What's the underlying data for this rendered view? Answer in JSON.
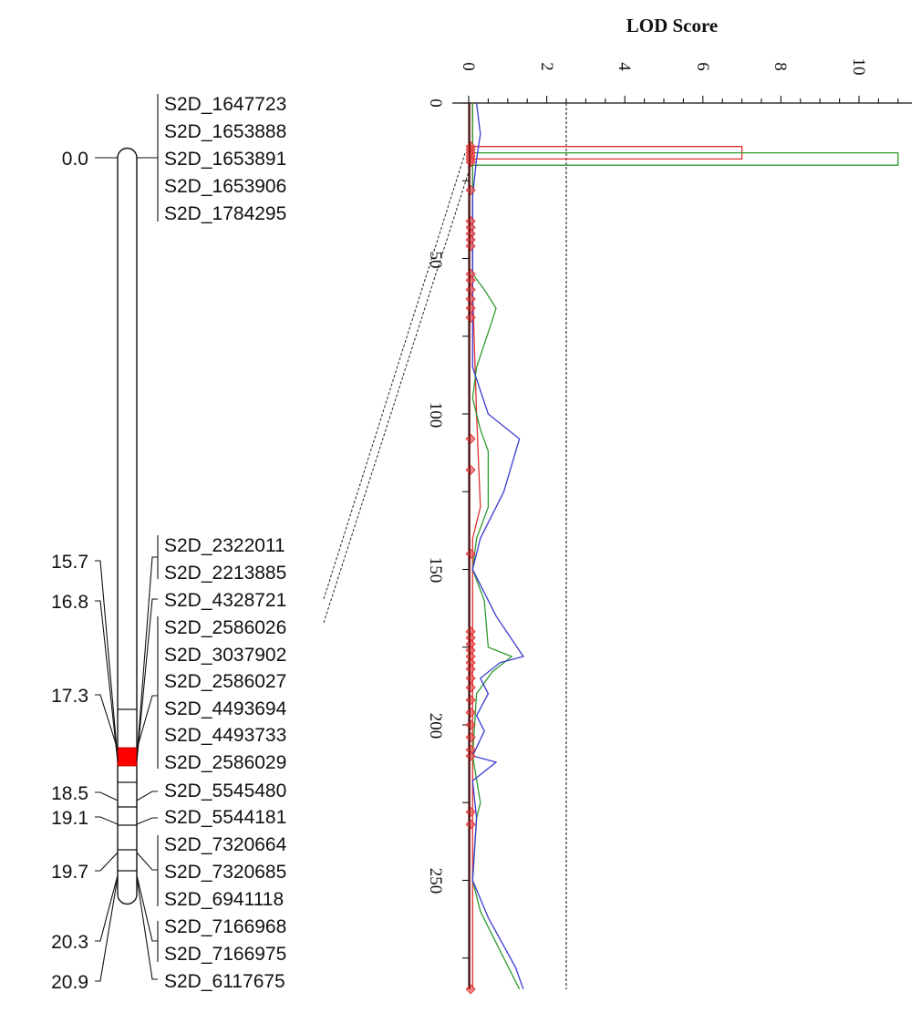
{
  "linkage_map": {
    "groups": [
      {
        "positions": [
          "0.0"
        ],
        "markers": [
          "S2D_1647723",
          "S2D_1653888",
          "S2D_1653891",
          "S2D_1653906",
          "S2D_1784295"
        ]
      },
      {
        "positions": [
          "15.7"
        ],
        "markers": [
          "S2D_2322011",
          "S2D_2213885"
        ]
      },
      {
        "positions": [
          "16.8"
        ],
        "markers": [
          "S2D_4328721"
        ]
      },
      {
        "positions": [
          "17.3"
        ],
        "markers": [
          "S2D_2586026",
          "S2D_3037902",
          "S2D_2586027",
          "S2D_4493694",
          "S2D_4493733",
          "S2D_2586029"
        ]
      },
      {
        "positions": [
          "18.5"
        ],
        "markers": [
          "S2D_5545480"
        ]
      },
      {
        "positions": [
          "19.1"
        ],
        "markers": [
          "S2D_5544181"
        ]
      },
      {
        "positions": [
          "19.7"
        ],
        "markers": [
          "S2D_7320664",
          "S2D_7320685",
          "S2D_6941118"
        ]
      },
      {
        "positions": [
          "20.3"
        ],
        "markers": [
          "S2D_7166968",
          "S2D_7166975"
        ]
      },
      {
        "positions": [
          "20.9"
        ],
        "markers": [
          "S2D_6117675"
        ]
      }
    ],
    "position_labels": [
      "0.0",
      "15.7",
      "16.8",
      "17.3",
      "18.5",
      "19.1",
      "19.7",
      "20.3",
      "20.9"
    ],
    "marker_labels": [
      "S2D_1647723",
      "S2D_1653888",
      "S2D_1653891",
      "S2D_1653906",
      "S2D_1784295",
      "S2D_2322011",
      "S2D_2213885",
      "S2D_4328721",
      "S2D_2586026",
      "S2D_3037902",
      "S2D_2586027",
      "S2D_4493694",
      "S2D_4493733",
      "S2D_2586029",
      "S2D_5545480",
      "S2D_5544181",
      "S2D_7320664",
      "S2D_7320685",
      "S2D_6941118",
      "S2D_7166968",
      "S2D_7166975",
      "S2D_6117675"
    ],
    "highlight_color": "#ff0000"
  },
  "chart_data": {
    "type": "line",
    "title": "LOD Score",
    "orientation": "horizontal-value (LOD on top x-axis, position on left y-axis)",
    "xlabel": "LOD Score",
    "ylabel": "",
    "xlim": [
      0,
      11
    ],
    "ylim": [
      0,
      285
    ],
    "x_ticks": [
      "0",
      "2",
      "4",
      "6",
      "8",
      "10"
    ],
    "y_ticks": [
      "0",
      "50",
      "100",
      "150",
      "200",
      "250"
    ],
    "threshold": 2.5,
    "grid": false,
    "legend": null,
    "series": [
      {
        "name": "red",
        "color": "#e03030",
        "points": [
          [
            0.1,
            0
          ],
          [
            0.1,
            14
          ],
          [
            7.0,
            14
          ],
          [
            7.0,
            18
          ],
          [
            0.1,
            18
          ],
          [
            0.1,
            60
          ],
          [
            0.2,
            100
          ],
          [
            0.3,
            130
          ],
          [
            0.1,
            140
          ],
          [
            0.1,
            285
          ]
        ]
      },
      {
        "name": "green",
        "color": "#2e9a2e",
        "points": [
          [
            0.1,
            0
          ],
          [
            0.1,
            16
          ],
          [
            11.0,
            16
          ],
          [
            11.0,
            20
          ],
          [
            0.1,
            20
          ],
          [
            0.1,
            55
          ],
          [
            0.4,
            60
          ],
          [
            0.7,
            66
          ],
          [
            0.6,
            70
          ],
          [
            0.2,
            85
          ],
          [
            0.1,
            95
          ],
          [
            0.3,
            105
          ],
          [
            0.5,
            112
          ],
          [
            0.5,
            130
          ],
          [
            0.2,
            140
          ],
          [
            0.1,
            150
          ],
          [
            0.4,
            160
          ],
          [
            0.5,
            175
          ],
          [
            1.1,
            178
          ],
          [
            0.6,
            183
          ],
          [
            0.2,
            190
          ],
          [
            0.1,
            210
          ],
          [
            0.3,
            225
          ],
          [
            0.2,
            230
          ],
          [
            0.1,
            250
          ],
          [
            0.3,
            260
          ],
          [
            0.9,
            275
          ],
          [
            1.3,
            285
          ]
        ]
      },
      {
        "name": "blue",
        "color": "#3a3ad0",
        "points": [
          [
            0.2,
            0
          ],
          [
            0.3,
            10
          ],
          [
            0.2,
            18
          ],
          [
            0.1,
            30
          ],
          [
            0.1,
            85
          ],
          [
            0.5,
            100
          ],
          [
            1.3,
            108
          ],
          [
            0.9,
            125
          ],
          [
            0.3,
            140
          ],
          [
            0.1,
            150
          ],
          [
            0.7,
            165
          ],
          [
            1.4,
            178
          ],
          [
            0.8,
            180
          ],
          [
            0.3,
            185
          ],
          [
            0.5,
            190
          ],
          [
            0.2,
            197
          ],
          [
            0.4,
            202
          ],
          [
            0.1,
            210
          ],
          [
            0.7,
            212
          ],
          [
            0.1,
            218
          ],
          [
            0.2,
            230
          ],
          [
            0.1,
            250
          ],
          [
            0.5,
            262
          ],
          [
            1.2,
            278
          ],
          [
            1.4,
            285
          ]
        ]
      }
    ],
    "marker_points_y": [
      14,
      15,
      16,
      17,
      18,
      19,
      28,
      38,
      40,
      42,
      44,
      46,
      55,
      57,
      60,
      63,
      66,
      69,
      108,
      118,
      145,
      170,
      172,
      174,
      176,
      178,
      180,
      182,
      185,
      188,
      192,
      196,
      200,
      204,
      208,
      210,
      228,
      232,
      285
    ]
  }
}
